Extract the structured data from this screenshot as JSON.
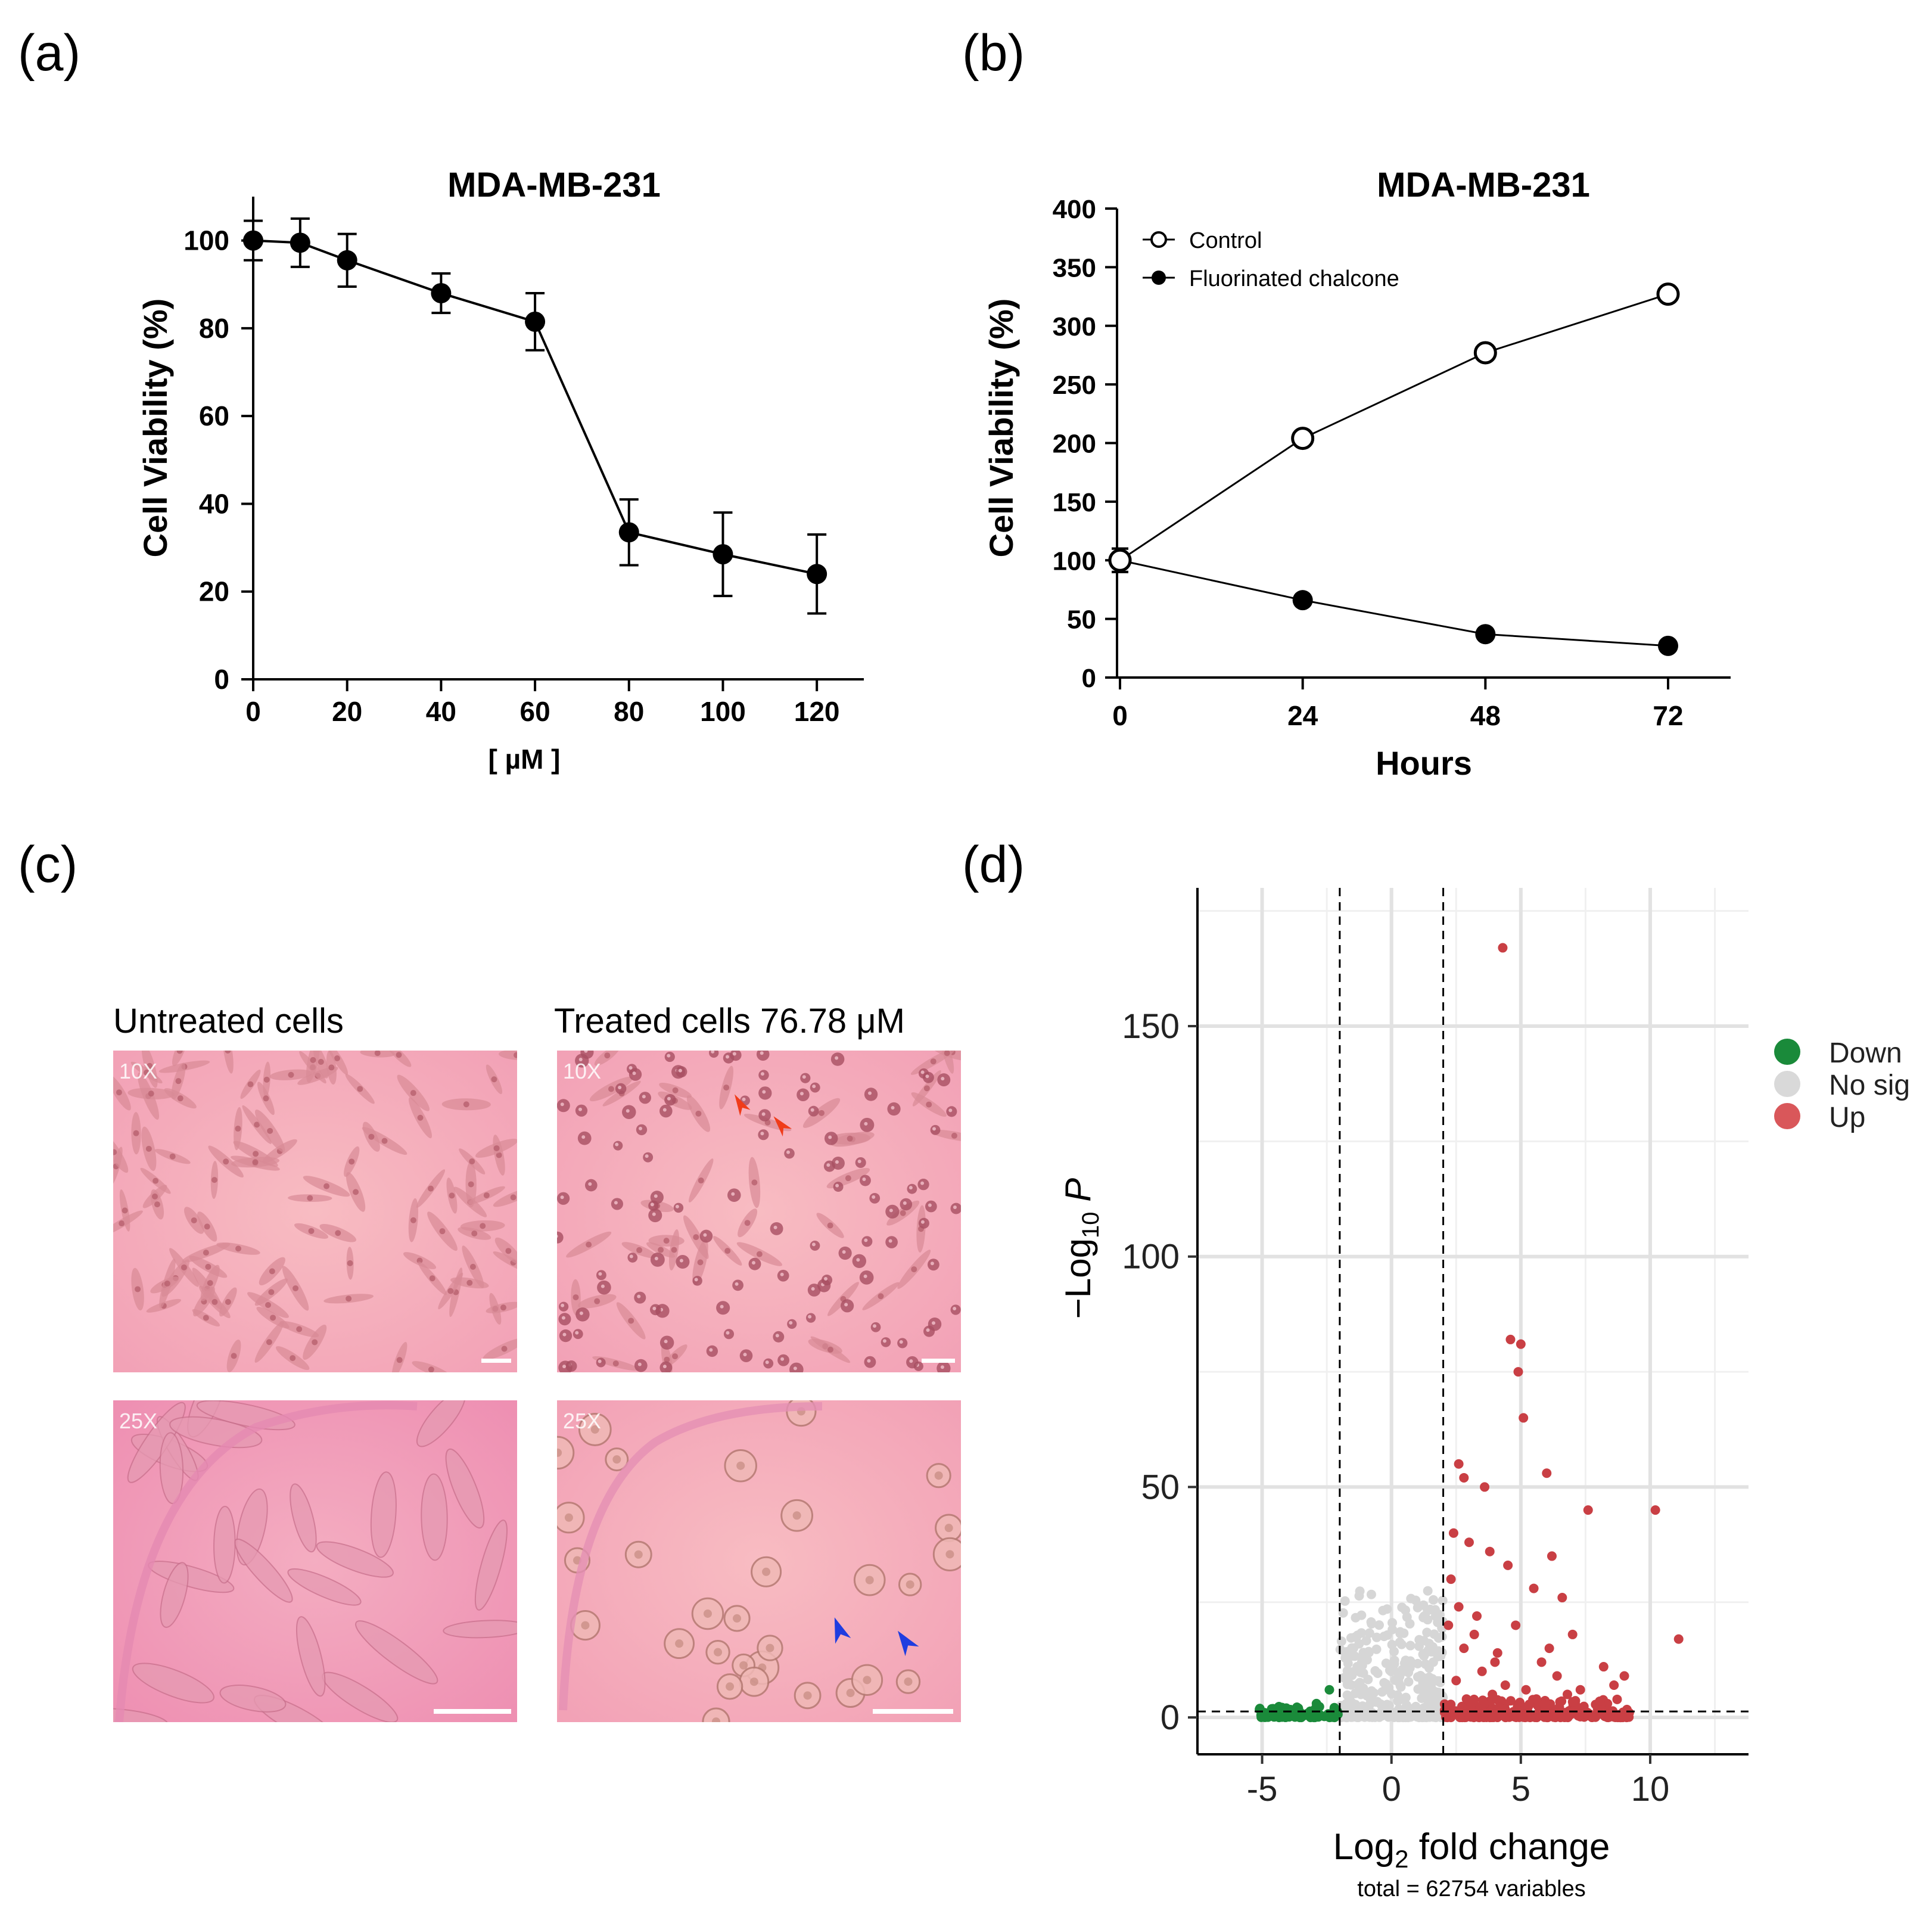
{
  "panels": {
    "a": {
      "label": "(a)",
      "chart_data": {
        "type": "line",
        "title": "MDA-MB-231",
        "xlabel": "[ µM ]",
        "ylabel": "Cell Viability (%)",
        "x": [
          0,
          10,
          20,
          40,
          60,
          80,
          100,
          120
        ],
        "y": [
          100,
          99.5,
          95.5,
          88,
          81.5,
          33.5,
          28.5,
          24
        ],
        "err": [
          4.5,
          5.5,
          6,
          4.5,
          6.5,
          7.5,
          9.5,
          9
        ],
        "xlim": [
          0,
          130
        ],
        "ylim": [
          0,
          110
        ],
        "xticks": [
          "0",
          "20",
          "40",
          "60",
          "80",
          "100",
          "120"
        ],
        "xtick_values": [
          0,
          20,
          40,
          60,
          80,
          100,
          120
        ],
        "yticks": [
          "0",
          "20",
          "40",
          "60",
          "80",
          "100"
        ],
        "ytick_values": [
          0,
          20,
          40,
          60,
          80,
          100
        ]
      }
    },
    "b": {
      "label": "(b)",
      "chart_data": {
        "type": "line",
        "title": "MDA-MB-231",
        "xlabel": "Hours",
        "ylabel": "Cell Viability (%)",
        "legend_position": "top-left",
        "x": [
          0,
          24,
          48,
          72
        ],
        "series": [
          {
            "name": "Control",
            "marker": "open-circle",
            "values": [
              100,
              204,
              277,
              327
            ],
            "err": [
              10,
              0,
              0,
              0
            ]
          },
          {
            "name": "Fluorinated chalcone",
            "marker": "filled-circle",
            "values": [
              100,
              66,
              37,
              27
            ],
            "err": [
              10,
              0,
              0,
              0
            ]
          }
        ],
        "xlim": [
          0,
          80
        ],
        "ylim": [
          0,
          400
        ],
        "xticks": [
          "0",
          "24",
          "48",
          "72"
        ],
        "xtick_values": [
          0,
          24,
          48,
          72
        ],
        "yticks": [
          "0",
          "50",
          "100",
          "150",
          "200",
          "250",
          "300",
          "350",
          "400"
        ],
        "ytick_values": [
          0,
          50,
          100,
          150,
          200,
          250,
          300,
          350,
          400
        ]
      }
    },
    "c": {
      "label": "(c)",
      "columns": [
        {
          "title": "Untreated cells"
        },
        {
          "title": "Treated cells 76.78 μM"
        }
      ],
      "images": [
        {
          "magnification": "10X",
          "condition": "untreated"
        },
        {
          "magnification": "10X",
          "condition": "treated"
        },
        {
          "magnification": "25X",
          "condition": "untreated"
        },
        {
          "magnification": "25X",
          "condition": "treated"
        }
      ],
      "colors": {
        "background": "#f2a1b4",
        "cell": "#b8606e",
        "red_arrow": "#f03c1a",
        "blue_arrow": "#1f3de0"
      }
    },
    "d": {
      "label": "(d)",
      "chart_data": {
        "type": "scatter",
        "xlabel_main": "Log",
        "xlabel_sub": "2",
        "xlabel_rest": " fold change",
        "ylabel_main": "−Log",
        "ylabel_sub": "10",
        "ylabel_rest": " P",
        "caption": "total = 62754 variables",
        "xlim": [
          -7.5,
          13.8
        ],
        "ylim": [
          -8,
          180
        ],
        "xticks": [
          "-5",
          "0",
          "5",
          "10"
        ],
        "xtick_values": [
          -5,
          0,
          5,
          10
        ],
        "yticks": [
          "0",
          "50",
          "100",
          "150"
        ],
        "ytick_values": [
          0,
          50,
          100,
          150
        ],
        "fc_cutoff": 2,
        "p_cutoff": 1.3,
        "legend": [
          {
            "name": "Down",
            "color": "#1a8a3a"
          },
          {
            "name": "No sig",
            "color": "#d9d9d9"
          },
          {
            "name": "Up",
            "color": "#d9575a"
          }
        ],
        "up_points": [
          [
            4.3,
            167
          ],
          [
            4.6,
            82
          ],
          [
            5.0,
            81
          ],
          [
            4.9,
            75
          ],
          [
            5.1,
            65
          ],
          [
            2.6,
            55
          ],
          [
            2.8,
            52
          ],
          [
            3.6,
            50
          ],
          [
            6.0,
            53
          ],
          [
            7.6,
            45
          ],
          [
            10.2,
            45
          ],
          [
            2.4,
            40
          ],
          [
            3.0,
            38
          ],
          [
            3.8,
            36
          ],
          [
            4.5,
            33
          ],
          [
            6.2,
            35
          ],
          [
            2.3,
            30
          ],
          [
            5.5,
            28
          ],
          [
            6.6,
            26
          ],
          [
            2.6,
            24
          ],
          [
            3.3,
            22
          ],
          [
            4.8,
            20
          ],
          [
            7.0,
            18
          ],
          [
            11.1,
            17
          ],
          [
            2.8,
            15
          ],
          [
            4.1,
            14
          ],
          [
            5.8,
            12
          ],
          [
            8.2,
            11
          ],
          [
            3.5,
            10
          ],
          [
            6.4,
            9
          ],
          [
            9.0,
            9
          ],
          [
            2.5,
            8
          ],
          [
            4.4,
            7
          ],
          [
            5.2,
            6
          ],
          [
            7.3,
            6
          ],
          [
            3.9,
            5
          ],
          [
            6.8,
            5
          ],
          [
            8.6,
            7
          ],
          [
            2.9,
            4
          ],
          [
            5.6,
            4
          ],
          [
            3.2,
            18
          ],
          [
            2.2,
            20
          ],
          [
            4.0,
            12
          ],
          [
            6.1,
            15
          ]
        ],
        "up_band": {
          "from": 2.05,
          "to": 9.2,
          "ymin": 0,
          "ymax": 4,
          "count": 220
        },
        "nosig_band": {
          "from": -2.0,
          "to": 2.0,
          "ymin": 0,
          "ymax": 28,
          "count": 260
        },
        "down_band": {
          "from": -5.2,
          "to": -2.05,
          "ymin": 0,
          "ymax": 2.5,
          "count": 70
        },
        "down_points": [
          [
            -2.4,
            6
          ],
          [
            -2.9,
            3
          ],
          [
            -3.6,
            2
          ]
        ]
      }
    }
  }
}
